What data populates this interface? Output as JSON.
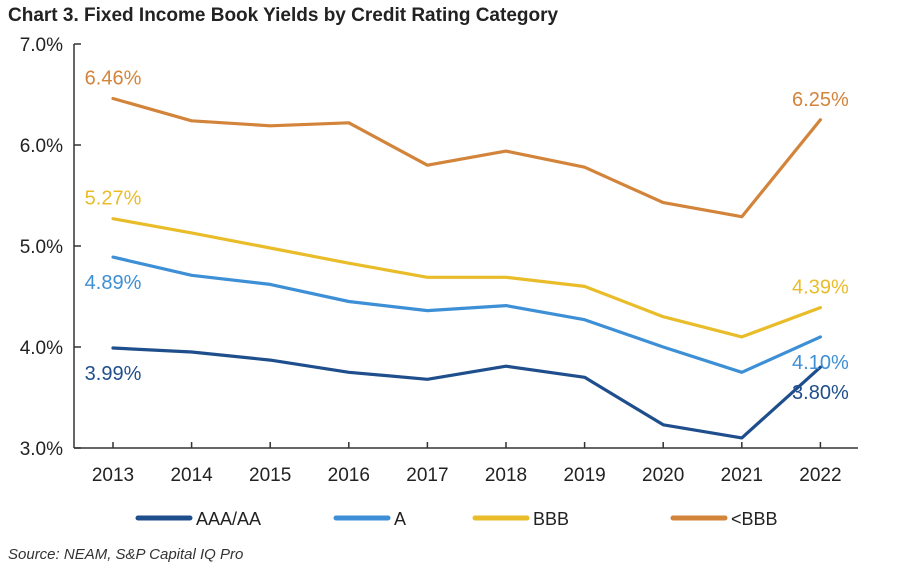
{
  "chart_data": {
    "type": "line",
    "title": "Chart 3. Fixed Income Book Yields by Credit Rating Category",
    "source": "Source: NEAM, S&P Capital IQ Pro",
    "xlabel": "",
    "ylabel": "",
    "categories": [
      "2013",
      "2014",
      "2015",
      "2016",
      "2017",
      "2018",
      "2019",
      "2020",
      "2021",
      "2022"
    ],
    "ylim": [
      3.0,
      7.0
    ],
    "yticks": [
      "3.0%",
      "4.0%",
      "5.0%",
      "6.0%",
      "7.0%"
    ],
    "ytick_values": [
      3.0,
      4.0,
      5.0,
      6.0,
      7.0
    ],
    "legend_position": "bottom",
    "series": [
      {
        "name": "AAA/AA",
        "color": "#1f4e8c",
        "values": [
          3.99,
          3.95,
          3.87,
          3.75,
          3.68,
          3.81,
          3.7,
          3.23,
          3.1,
          3.8
        ],
        "labels": [
          {
            "index": 0,
            "text": "3.99%",
            "pos": "below"
          },
          {
            "index": 9,
            "text": "3.80%",
            "pos": "below"
          }
        ]
      },
      {
        "name": "A",
        "color": "#3d8fd6",
        "values": [
          4.89,
          4.71,
          4.62,
          4.45,
          4.36,
          4.41,
          4.27,
          4.0,
          3.75,
          4.1
        ],
        "labels": [
          {
            "index": 0,
            "text": "4.89%",
            "pos": "below"
          },
          {
            "index": 9,
            "text": "4.10%",
            "pos": "below"
          }
        ]
      },
      {
        "name": "BBB",
        "color": "#e9bc2a",
        "values": [
          5.27,
          5.13,
          4.98,
          4.83,
          4.69,
          4.69,
          4.6,
          4.3,
          4.1,
          4.39
        ],
        "labels": [
          {
            "index": 0,
            "text": "5.27%",
            "pos": "above"
          },
          {
            "index": 9,
            "text": "4.39%",
            "pos": "above"
          }
        ]
      },
      {
        "name": "<BBB",
        "color": "#d3843b",
        "values": [
          6.46,
          6.24,
          6.19,
          6.22,
          5.8,
          5.94,
          5.78,
          5.43,
          5.29,
          6.25
        ],
        "labels": [
          {
            "index": 0,
            "text": "6.46%",
            "pos": "above"
          },
          {
            "index": 9,
            "text": "6.25%",
            "pos": "above"
          }
        ]
      }
    ]
  }
}
